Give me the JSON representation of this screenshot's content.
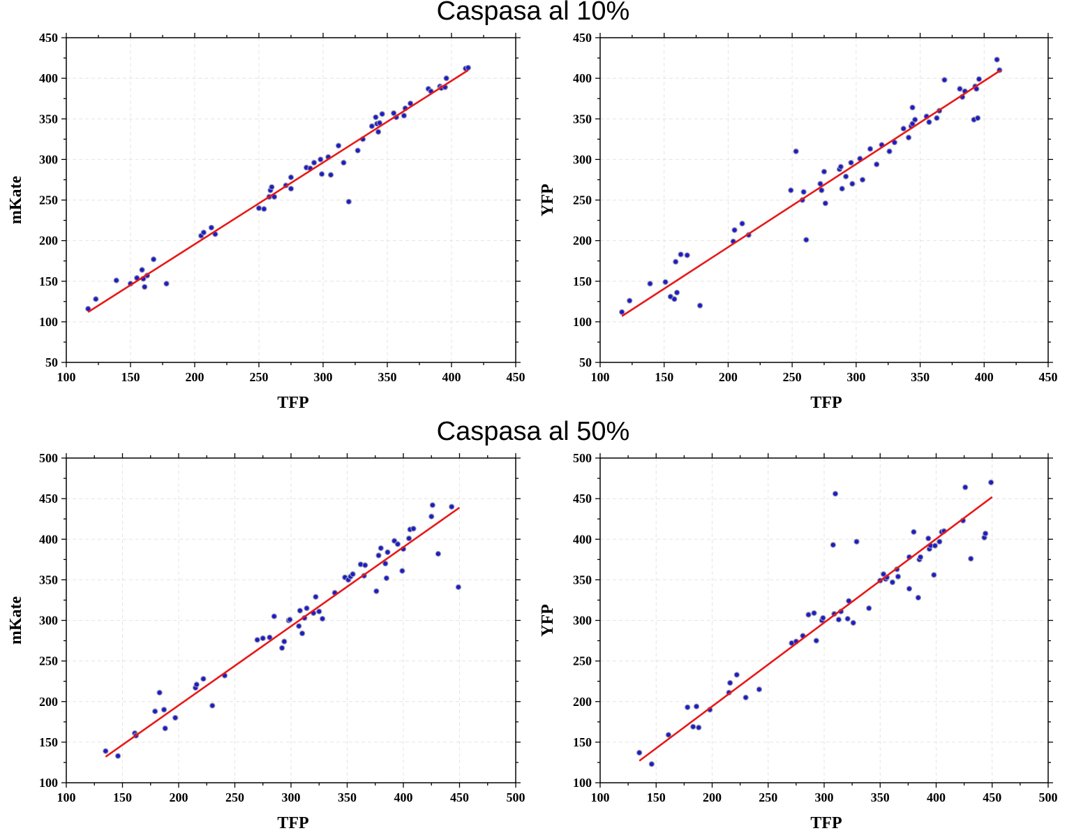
{
  "section_titles": [
    "Caspasa al 10%",
    "Caspasa al 50%"
  ],
  "colors": {
    "points": "#1c1cc8",
    "fit_line": "#e81818",
    "grid": "#e4e4e4",
    "frame": "#000000"
  },
  "chart_data": [
    {
      "type": "scatter",
      "section": "Caspasa al 10%",
      "xlabel": "TFP",
      "ylabel": "mKate",
      "xlim": [
        100,
        450
      ],
      "ylim": [
        50,
        450
      ],
      "xticks": [
        100,
        150,
        200,
        250,
        300,
        350,
        400,
        450
      ],
      "yticks": [
        50,
        100,
        150,
        200,
        250,
        300,
        350,
        400,
        450
      ],
      "grid": true,
      "fit_line": {
        "x": [
          117,
          413
        ],
        "y": [
          112,
          410
        ]
      },
      "points": [
        [
          117,
          116
        ],
        [
          123,
          128
        ],
        [
          139,
          151
        ],
        [
          150,
          147
        ],
        [
          155,
          154
        ],
        [
          159,
          164
        ],
        [
          160,
          153
        ],
        [
          161,
          143
        ],
        [
          163,
          157
        ],
        [
          168,
          177
        ],
        [
          178,
          147
        ],
        [
          205,
          206
        ],
        [
          207,
          210
        ],
        [
          213,
          216
        ],
        [
          216,
          208
        ],
        [
          250,
          240
        ],
        [
          254,
          239
        ],
        [
          258,
          254
        ],
        [
          259,
          262
        ],
        [
          260,
          266
        ],
        [
          262,
          254
        ],
        [
          271,
          268
        ],
        [
          275,
          278
        ],
        [
          275,
          264
        ],
        [
          287,
          290
        ],
        [
          290,
          289
        ],
        [
          293,
          296
        ],
        [
          298,
          300
        ],
        [
          299,
          282
        ],
        [
          304,
          303
        ],
        [
          306,
          281
        ],
        [
          312,
          317
        ],
        [
          316,
          296
        ],
        [
          320,
          248
        ],
        [
          327,
          311
        ],
        [
          331,
          325
        ],
        [
          338,
          341
        ],
        [
          341,
          352
        ],
        [
          342,
          344
        ],
        [
          343,
          334
        ],
        [
          344,
          345
        ],
        [
          346,
          356
        ],
        [
          355,
          357
        ],
        [
          357,
          352
        ],
        [
          363,
          354
        ],
        [
          364,
          363
        ],
        [
          368,
          369
        ],
        [
          382,
          387
        ],
        [
          384,
          384
        ],
        [
          391,
          390
        ],
        [
          392,
          388
        ],
        [
          395,
          389
        ],
        [
          396,
          400
        ],
        [
          411,
          412
        ],
        [
          413,
          413
        ]
      ]
    },
    {
      "type": "scatter",
      "section": "Caspasa al 10%",
      "xlabel": "TFP",
      "ylabel": "YFP",
      "xlim": [
        100,
        450
      ],
      "ylim": [
        50,
        450
      ],
      "xticks": [
        100,
        150,
        200,
        250,
        300,
        350,
        400,
        450
      ],
      "yticks": [
        50,
        100,
        150,
        200,
        250,
        300,
        350,
        400,
        450
      ],
      "grid": true,
      "fit_line": {
        "x": [
          117,
          413
        ],
        "y": [
          107,
          410
        ]
      },
      "points": [
        [
          117,
          112
        ],
        [
          123,
          126
        ],
        [
          139,
          147
        ],
        [
          151,
          149
        ],
        [
          155,
          131
        ],
        [
          158,
          128
        ],
        [
          159,
          174
        ],
        [
          160,
          136
        ],
        [
          163,
          183
        ],
        [
          168,
          182
        ],
        [
          178,
          120
        ],
        [
          204,
          199
        ],
        [
          205,
          213
        ],
        [
          211,
          221
        ],
        [
          216,
          207
        ],
        [
          249,
          262
        ],
        [
          253,
          310
        ],
        [
          258,
          250
        ],
        [
          259,
          260
        ],
        [
          261,
          201
        ],
        [
          272,
          270
        ],
        [
          273,
          262
        ],
        [
          275,
          285
        ],
        [
          276,
          246
        ],
        [
          287,
          288
        ],
        [
          288,
          291
        ],
        [
          289,
          264
        ],
        [
          292,
          279
        ],
        [
          296,
          296
        ],
        [
          297,
          270
        ],
        [
          303,
          301
        ],
        [
          305,
          275
        ],
        [
          311,
          313
        ],
        [
          316,
          294
        ],
        [
          320,
          318
        ],
        [
          326,
          310
        ],
        [
          330,
          321
        ],
        [
          337,
          338
        ],
        [
          341,
          327
        ],
        [
          343,
          341
        ],
        [
          344,
          364
        ],
        [
          344,
          344
        ],
        [
          346,
          349
        ],
        [
          355,
          353
        ],
        [
          357,
          346
        ],
        [
          363,
          351
        ],
        [
          365,
          360
        ],
        [
          369,
          398
        ],
        [
          381,
          387
        ],
        [
          383,
          377
        ],
        [
          385,
          384
        ],
        [
          392,
          349
        ],
        [
          393,
          390
        ],
        [
          394,
          387
        ],
        [
          395,
          351
        ],
        [
          396,
          399
        ],
        [
          410,
          423
        ],
        [
          412,
          410
        ]
      ]
    },
    {
      "type": "scatter",
      "section": "Caspasa al 50%",
      "xlabel": "TFP",
      "ylabel": "mKate",
      "xlim": [
        100,
        500
      ],
      "ylim": [
        100,
        500
      ],
      "xticks": [
        100,
        150,
        200,
        250,
        300,
        350,
        400,
        450,
        500
      ],
      "yticks": [
        100,
        150,
        200,
        250,
        300,
        350,
        400,
        450,
        500
      ],
      "grid": true,
      "fit_line": {
        "x": [
          135,
          450
        ],
        "y": [
          132,
          439
        ]
      },
      "points": [
        [
          135,
          139
        ],
        [
          146,
          133
        ],
        [
          161,
          161
        ],
        [
          162,
          158
        ],
        [
          179,
          188
        ],
        [
          183,
          211
        ],
        [
          187,
          190
        ],
        [
          188,
          167
        ],
        [
          197,
          180
        ],
        [
          215,
          217
        ],
        [
          216,
          221
        ],
        [
          222,
          228
        ],
        [
          230,
          195
        ],
        [
          241,
          232
        ],
        [
          270,
          276
        ],
        [
          275,
          278
        ],
        [
          281,
          279
        ],
        [
          285,
          305
        ],
        [
          292,
          266
        ],
        [
          294,
          274
        ],
        [
          298,
          300
        ],
        [
          299,
          301
        ],
        [
          307,
          293
        ],
        [
          308,
          312
        ],
        [
          310,
          284
        ],
        [
          312,
          303
        ],
        [
          314,
          315
        ],
        [
          320,
          309
        ],
        [
          322,
          329
        ],
        [
          325,
          311
        ],
        [
          328,
          302
        ],
        [
          339,
          334
        ],
        [
          348,
          353
        ],
        [
          351,
          350
        ],
        [
          353,
          354
        ],
        [
          355,
          357
        ],
        [
          362,
          369
        ],
        [
          365,
          355
        ],
        [
          366,
          368
        ],
        [
          376,
          336
        ],
        [
          378,
          380
        ],
        [
          380,
          389
        ],
        [
          384,
          370
        ],
        [
          385,
          352
        ],
        [
          386,
          384
        ],
        [
          392,
          398
        ],
        [
          395,
          394
        ],
        [
          399,
          361
        ],
        [
          400,
          388
        ],
        [
          405,
          401
        ],
        [
          406,
          412
        ],
        [
          409,
          413
        ],
        [
          425,
          428
        ],
        [
          426,
          442
        ],
        [
          431,
          382
        ],
        [
          443,
          440
        ],
        [
          449,
          341
        ]
      ]
    },
    {
      "type": "scatter",
      "section": "Caspasa al 50%",
      "xlabel": "TFP",
      "ylabel": "YFP",
      "xlim": [
        100,
        500
      ],
      "ylim": [
        100,
        500
      ],
      "xticks": [
        100,
        150,
        200,
        250,
        300,
        350,
        400,
        450,
        500
      ],
      "yticks": [
        100,
        150,
        200,
        250,
        300,
        350,
        400,
        450,
        500
      ],
      "grid": true,
      "fit_line": {
        "x": [
          135,
          450
        ],
        "y": [
          127,
          452
        ]
      },
      "points": [
        [
          135,
          137
        ],
        [
          146,
          123
        ],
        [
          161,
          159
        ],
        [
          178,
          193
        ],
        [
          183,
          169
        ],
        [
          186,
          194
        ],
        [
          188,
          168
        ],
        [
          198,
          190
        ],
        [
          215,
          211
        ],
        [
          216,
          223
        ],
        [
          222,
          233
        ],
        [
          230,
          205
        ],
        [
          242,
          215
        ],
        [
          271,
          272
        ],
        [
          275,
          274
        ],
        [
          281,
          281
        ],
        [
          286,
          307
        ],
        [
          291,
          309
        ],
        [
          293,
          275
        ],
        [
          298,
          300
        ],
        [
          299,
          303
        ],
        [
          308,
          393
        ],
        [
          309,
          308
        ],
        [
          310,
          456
        ],
        [
          313,
          301
        ],
        [
          315,
          311
        ],
        [
          321,
          302
        ],
        [
          322,
          324
        ],
        [
          326,
          297
        ],
        [
          329,
          397
        ],
        [
          340,
          315
        ],
        [
          350,
          349
        ],
        [
          353,
          357
        ],
        [
          355,
          351
        ],
        [
          356,
          353
        ],
        [
          361,
          347
        ],
        [
          365,
          363
        ],
        [
          366,
          354
        ],
        [
          376,
          339
        ],
        [
          376,
          378
        ],
        [
          380,
          409
        ],
        [
          384,
          328
        ],
        [
          385,
          375
        ],
        [
          386,
          378
        ],
        [
          393,
          401
        ],
        [
          394,
          388
        ],
        [
          395,
          392
        ],
        [
          398,
          356
        ],
        [
          399,
          392
        ],
        [
          403,
          397
        ],
        [
          405,
          409
        ],
        [
          407,
          410
        ],
        [
          424,
          423
        ],
        [
          426,
          464
        ],
        [
          431,
          376
        ],
        [
          443,
          402
        ],
        [
          444,
          407
        ],
        [
          449,
          470
        ]
      ]
    }
  ]
}
